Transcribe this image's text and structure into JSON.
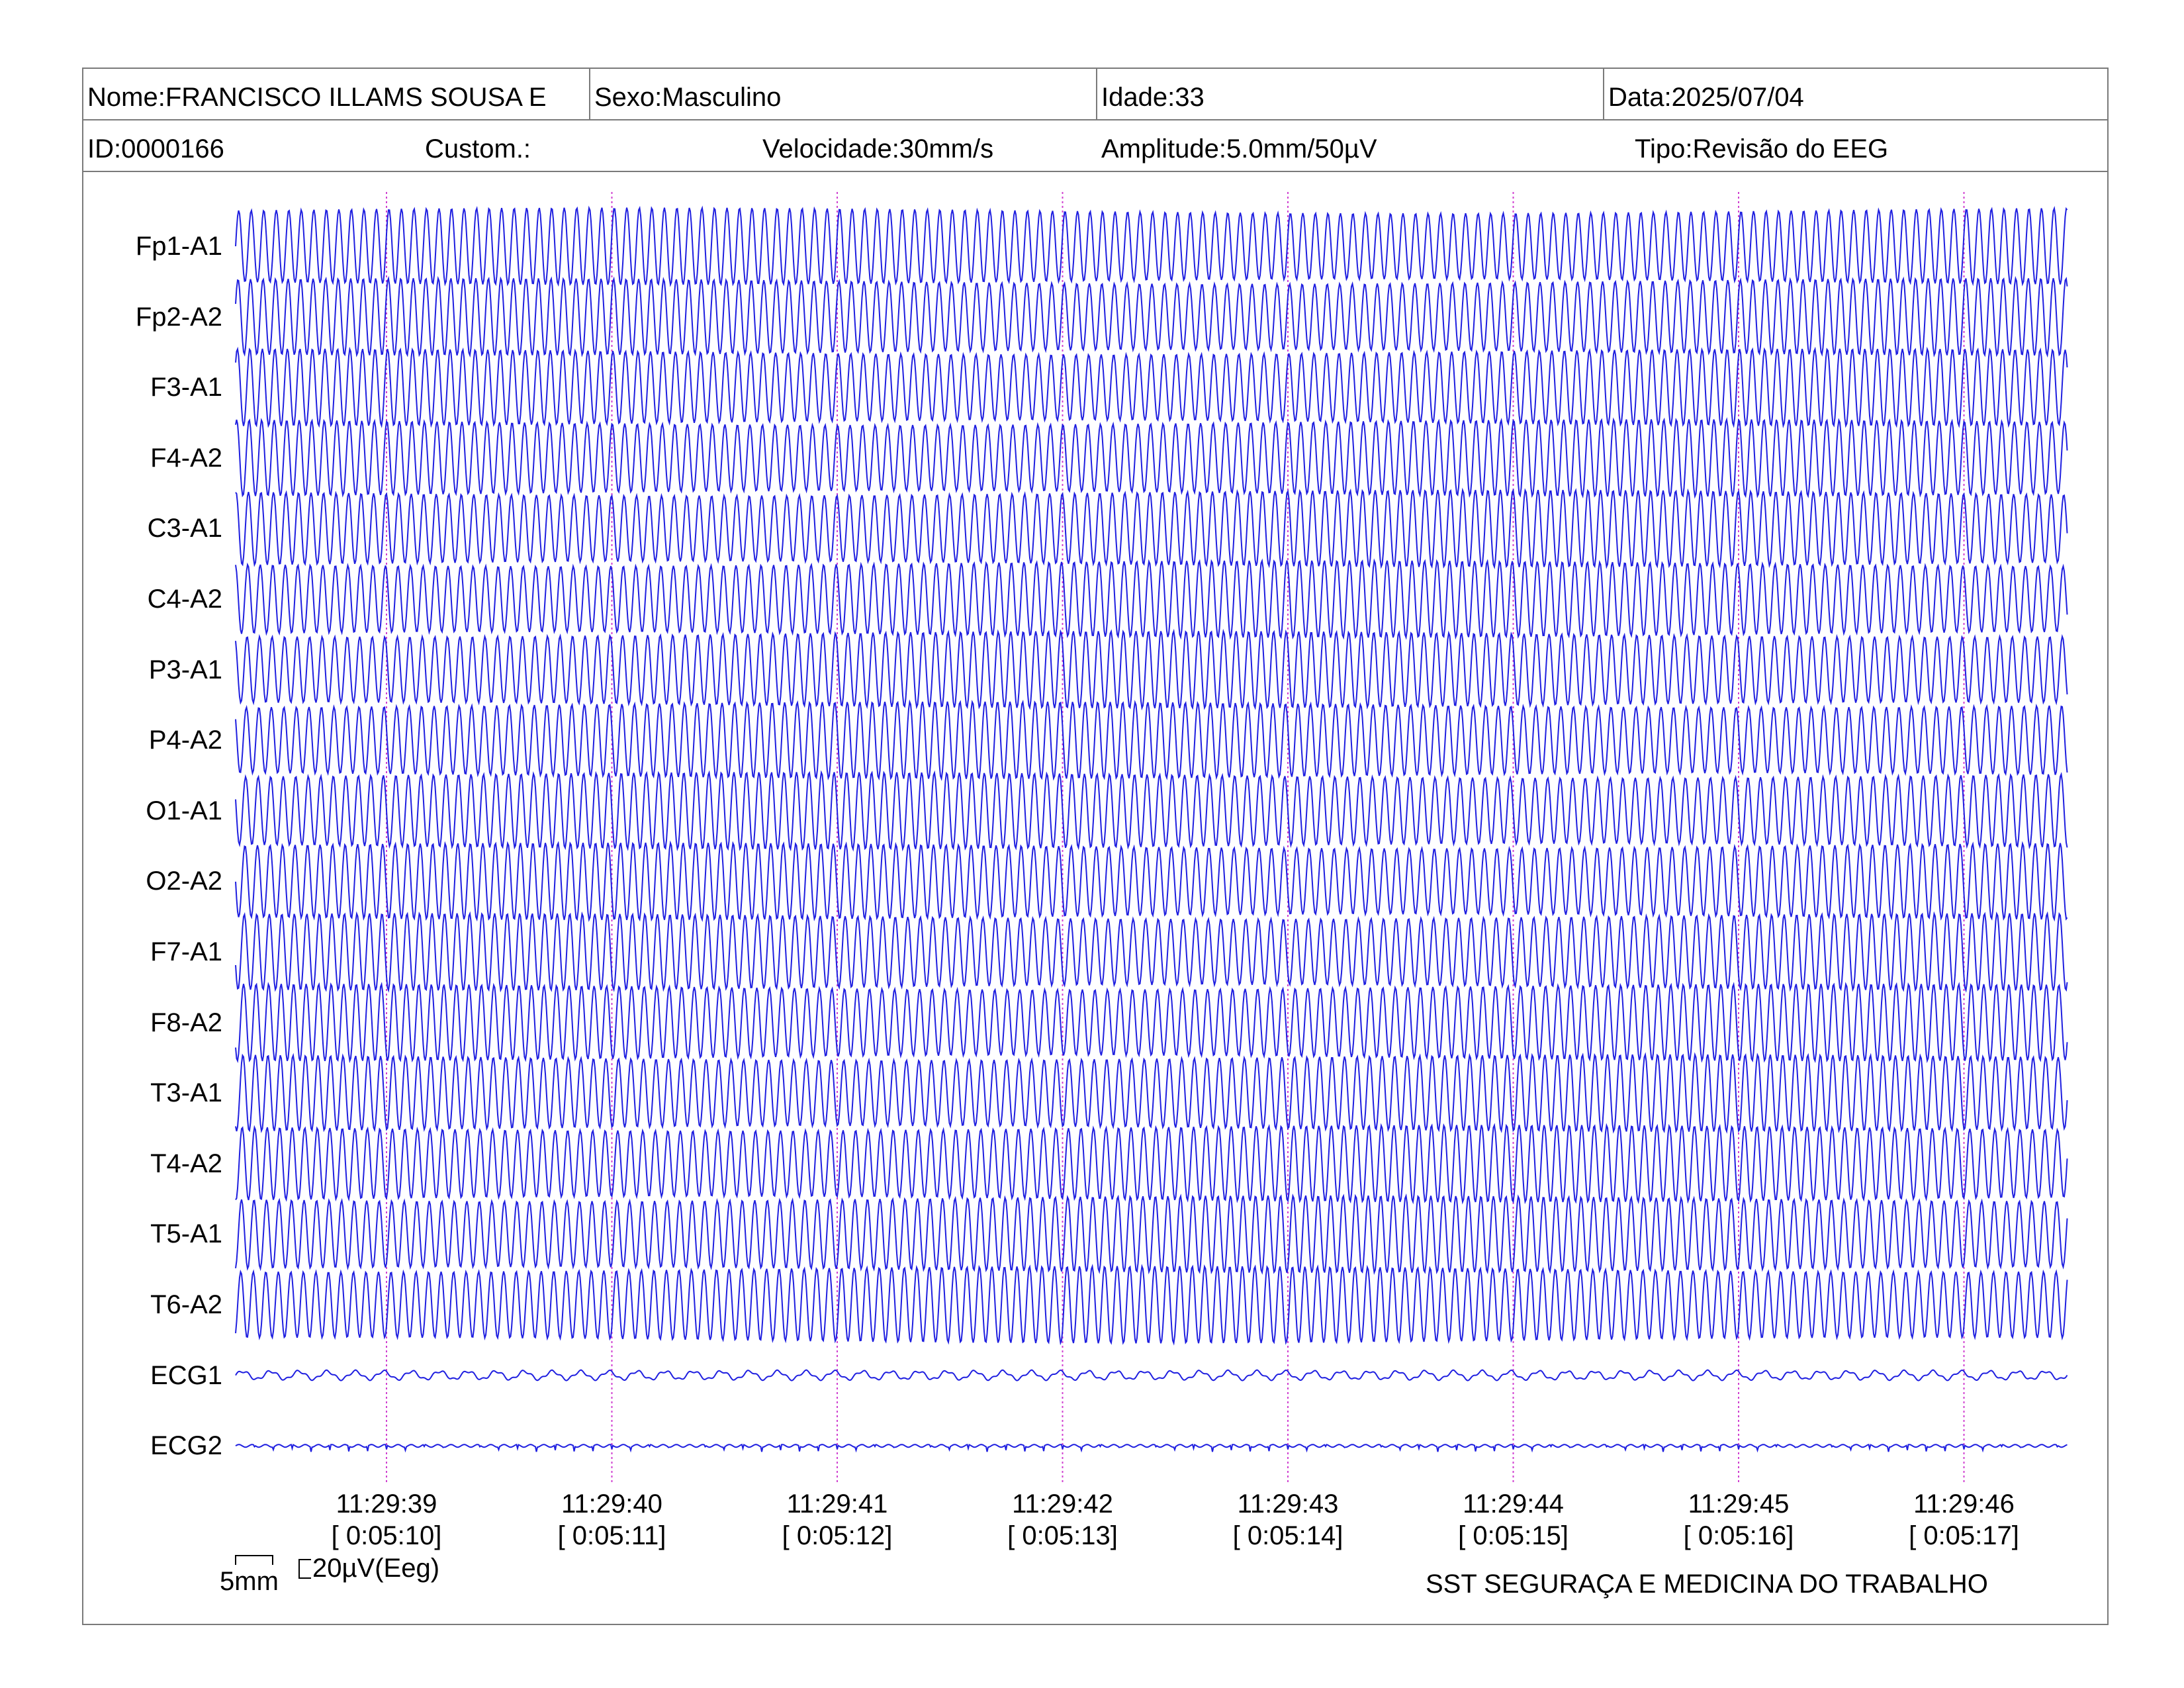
{
  "header": {
    "nome": "Nome:FRANCISCO ILLAMS SOUSA E",
    "sexo": "Sexo:Masculino",
    "idade": "Idade:33",
    "data": "Data:2025/07/04",
    "id": "ID:0000166",
    "custom": "Custom.:",
    "velocidade": "Velocidade:30mm/s",
    "amplitude": "Amplitude:5.0mm/50µV",
    "tipo": "Tipo:Revisão do EEG"
  },
  "channels": [
    {
      "label": "Fp1-A1"
    },
    {
      "label": "Fp2-A2"
    },
    {
      "label": "F3-A1"
    },
    {
      "label": "F4-A2"
    },
    {
      "label": "C3-A1"
    },
    {
      "label": "C4-A2"
    },
    {
      "label": "P3-A1"
    },
    {
      "label": "P4-A2"
    },
    {
      "label": "O1-A1"
    },
    {
      "label": "O2-A2"
    },
    {
      "label": "F7-A1"
    },
    {
      "label": "F8-A2"
    },
    {
      "label": "T3-A1"
    },
    {
      "label": "T4-A2"
    },
    {
      "label": "T5-A1"
    },
    {
      "label": "T6-A2"
    },
    {
      "label": "ECG1"
    },
    {
      "label": "ECG2"
    }
  ],
  "timestamps": [
    {
      "clock": "11:29:39",
      "elapsed": "[ 0:05:10]"
    },
    {
      "clock": "11:29:40",
      "elapsed": "[ 0:05:11]"
    },
    {
      "clock": "11:29:41",
      "elapsed": "[ 0:05:12]"
    },
    {
      "clock": "11:29:42",
      "elapsed": "[ 0:05:13]"
    },
    {
      "clock": "11:29:43",
      "elapsed": "[ 0:05:14]"
    },
    {
      "clock": "11:29:44",
      "elapsed": "[ 0:05:15]"
    },
    {
      "clock": "11:29:45",
      "elapsed": "[ 0:05:16]"
    },
    {
      "clock": "11:29:46",
      "elapsed": "[ 0:05:17]"
    }
  ],
  "scale": {
    "time_label": "5mm",
    "amp_label": "20µV(Eeg)"
  },
  "footer": {
    "company": "SST SEGURAÇA E MEDICINA DO TRABALHO"
  },
  "colors": {
    "trace": "#1f1fe0",
    "marker": "#d040d0",
    "border": "#7a7a7a"
  },
  "signal": {
    "eeg_cycles_per_second": 18,
    "ecg_cycles_per_second": 8
  }
}
